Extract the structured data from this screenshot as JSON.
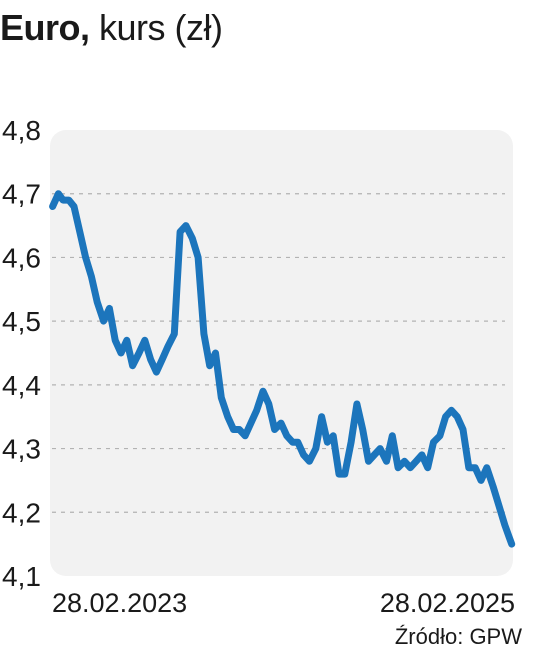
{
  "title": {
    "bold": "Euro,",
    "rest": "kurs (zł)"
  },
  "source": "Źródło: GPW",
  "colors": {
    "line": "#1c75bc",
    "panel": "#f2f2f2",
    "grid": "#b3b3b3"
  },
  "chart_data": {
    "type": "line",
    "title": "Euro, kurs (zł)",
    "xlabel": "",
    "ylabel": "",
    "ylim": [
      4.1,
      4.8
    ],
    "yticks": [
      4.1,
      4.2,
      4.3,
      4.4,
      4.5,
      4.6,
      4.7,
      4.8
    ],
    "ytick_labels": [
      "4,1",
      "4,2",
      "4,3",
      "4,4",
      "4,5",
      "4,6",
      "4,7",
      "4,8"
    ],
    "xlim": [
      "2023-01-01",
      "2025-03-01"
    ],
    "x_tick_labels": [
      {
        "x": "2023-02-28",
        "label": "28.02.2023"
      },
      {
        "x": "2025-02-28",
        "label": "28.02.2025"
      }
    ],
    "grid": true,
    "series": [
      {
        "x": [
          "2023-01-02",
          "2023-01-12",
          "2023-01-20",
          "2023-01-30",
          "2023-02-08",
          "2023-02-18",
          "2023-02-28",
          "2023-03-10",
          "2023-03-20",
          "2023-03-31",
          "2023-04-10",
          "2023-04-20",
          "2023-04-30",
          "2023-05-10",
          "2023-05-20",
          "2023-05-31",
          "2023-06-10",
          "2023-06-20",
          "2023-06-30",
          "2023-07-10",
          "2023-07-20",
          "2023-07-31",
          "2023-08-10",
          "2023-08-20",
          "2023-08-31",
          "2023-09-10",
          "2023-09-20",
          "2023-09-30",
          "2023-10-10",
          "2023-10-20",
          "2023-10-31",
          "2023-11-10",
          "2023-11-20",
          "2023-11-30",
          "2023-12-10",
          "2023-12-20",
          "2023-12-31",
          "2024-01-10",
          "2024-01-20",
          "2024-01-31",
          "2024-02-10",
          "2024-02-20",
          "2024-02-29",
          "2024-03-10",
          "2024-03-20",
          "2024-03-31",
          "2024-04-10",
          "2024-04-20",
          "2024-04-30",
          "2024-05-10",
          "2024-05-20",
          "2024-05-31",
          "2024-06-10",
          "2024-06-20",
          "2024-06-30",
          "2024-07-10",
          "2024-07-20",
          "2024-07-31",
          "2024-08-10",
          "2024-08-20",
          "2024-08-31",
          "2024-09-10",
          "2024-09-20",
          "2024-09-30",
          "2024-10-10",
          "2024-10-20",
          "2024-10-31",
          "2024-11-10",
          "2024-11-20",
          "2024-11-30",
          "2024-12-10",
          "2024-12-20",
          "2024-12-31",
          "2025-01-10",
          "2025-01-20",
          "2025-01-31",
          "2025-02-10",
          "2025-02-20",
          "2025-02-28",
          "2025-03-04"
        ],
        "values": [
          4.68,
          4.7,
          4.69,
          4.69,
          4.68,
          4.64,
          4.6,
          4.57,
          4.53,
          4.5,
          4.52,
          4.47,
          4.45,
          4.47,
          4.43,
          4.45,
          4.47,
          4.44,
          4.42,
          4.44,
          4.46,
          4.48,
          4.64,
          4.65,
          4.63,
          4.6,
          4.48,
          4.43,
          4.45,
          4.38,
          4.35,
          4.33,
          4.33,
          4.32,
          4.34,
          4.36,
          4.39,
          4.37,
          4.33,
          4.34,
          4.32,
          4.31,
          4.31,
          4.29,
          4.28,
          4.3,
          4.35,
          4.31,
          4.32,
          4.26,
          4.26,
          4.31,
          4.37,
          4.33,
          4.28,
          4.29,
          4.3,
          4.28,
          4.32,
          4.27,
          4.28,
          4.27,
          4.28,
          4.29,
          4.27,
          4.31,
          4.32,
          4.35,
          4.36,
          4.35,
          4.33,
          4.27,
          4.27,
          4.25,
          4.27,
          4.24,
          4.21,
          4.18,
          4.16,
          4.15
        ]
      }
    ]
  }
}
